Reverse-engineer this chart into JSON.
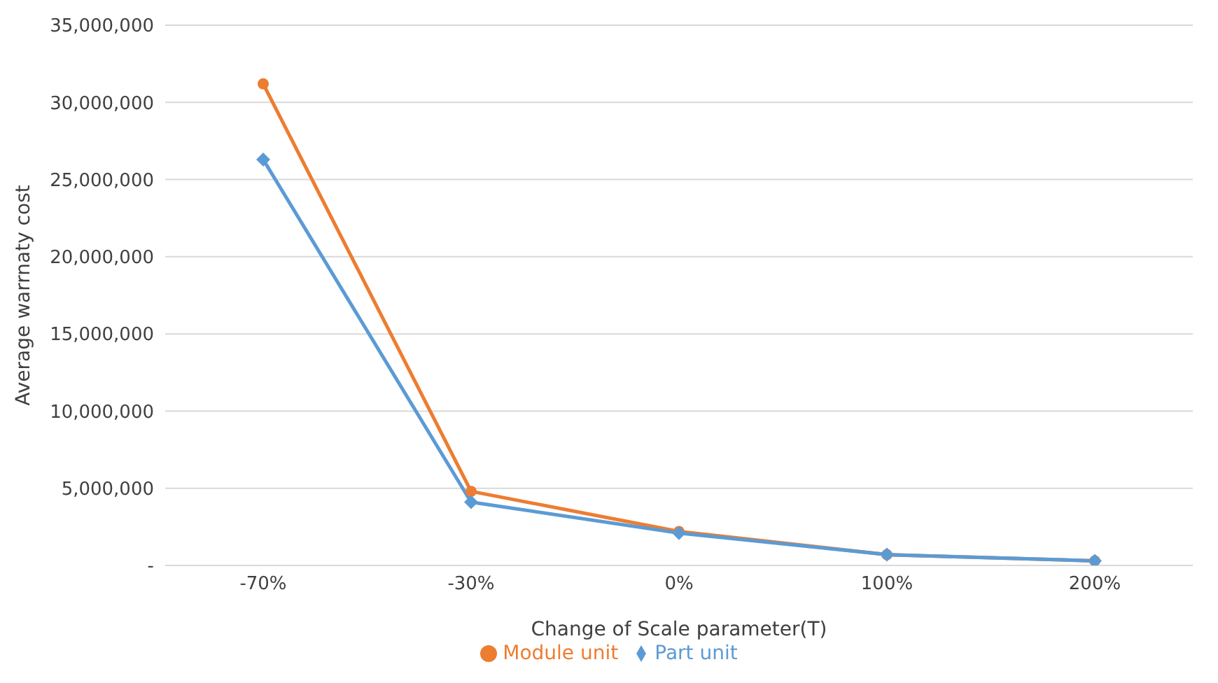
{
  "chart_data": {
    "type": "line",
    "xlabel": "Change of Scale parameter(T)",
    "ylabel": "Average warrnaty cost",
    "categories": [
      "-70%",
      "-30%",
      "0%",
      "100%",
      "200%"
    ],
    "series": [
      {
        "name": "Module unit",
        "color": "#ed7d31",
        "marker": "circle",
        "values": [
          31200000,
          4800000,
          2200000,
          700000,
          300000
        ]
      },
      {
        "name": "Part unit",
        "color": "#5b9bd5",
        "marker": "diamond",
        "values": [
          26300000,
          4100000,
          2100000,
          700000,
          300000
        ]
      }
    ],
    "ylim": [
      0,
      35000000
    ],
    "yticks": [
      {
        "value": 0,
        "label": "-"
      },
      {
        "value": 5000000,
        "label": "5,000,000"
      },
      {
        "value": 10000000,
        "label": "10,000,000"
      },
      {
        "value": 15000000,
        "label": "15,000,000"
      },
      {
        "value": 20000000,
        "label": "20,000,000"
      },
      {
        "value": 25000000,
        "label": "25,000,000"
      },
      {
        "value": 30000000,
        "label": "30,000,000"
      },
      {
        "value": 35000000,
        "label": "35,000,000"
      }
    ],
    "grid": "y",
    "legend": "bottom"
  }
}
